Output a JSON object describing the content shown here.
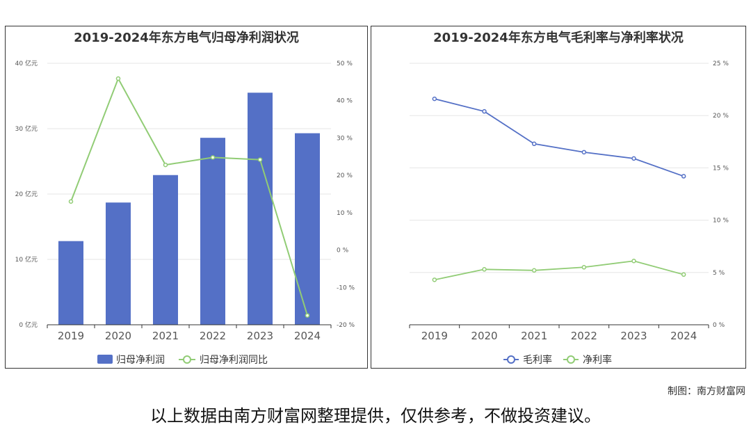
{
  "chart_data": [
    {
      "type": "bar",
      "title": "2019-2024年东方电气归母净利润状况",
      "categories": [
        "2019",
        "2020",
        "2021",
        "2022",
        "2023",
        "2024"
      ],
      "y_left": {
        "ylim": [
          0,
          40
        ],
        "ticks": [
          0,
          10,
          20,
          30,
          40
        ],
        "tick_labels": [
          "0 亿元",
          "10 亿元",
          "20 亿元",
          "30 亿元",
          "40 亿元"
        ]
      },
      "y_right": {
        "ylim": [
          -20,
          50
        ],
        "ticks": [
          -20,
          -10,
          0,
          10,
          20,
          30,
          40,
          50
        ],
        "tick_labels": [
          "-20 %",
          "-10 %",
          "0 %",
          "10 %",
          "20 %",
          "30 %",
          "40 %",
          "50 %"
        ]
      },
      "series": [
        {
          "name": "归母净利润",
          "type": "bar",
          "axis": "left",
          "color": "#5470c6",
          "values": [
            12.8,
            18.7,
            22.9,
            28.6,
            35.5,
            29.3
          ]
        },
        {
          "name": "归母净利润同比",
          "type": "line",
          "axis": "right",
          "color": "#91cc75",
          "values": [
            13.0,
            45.9,
            22.8,
            24.8,
            24.2,
            -17.5
          ]
        }
      ],
      "legend_position": "bottom-center",
      "grid": true
    },
    {
      "type": "line",
      "title": "2019-2024年东方电气毛利率与净利率状况",
      "categories": [
        "2019",
        "2020",
        "2021",
        "2022",
        "2023",
        "2024"
      ],
      "y_right": {
        "ylim": [
          0,
          25
        ],
        "ticks": [
          0,
          5,
          10,
          15,
          20,
          25
        ],
        "tick_labels": [
          "0 %",
          "5 %",
          "10 %",
          "15 %",
          "20 %",
          "25 %"
        ]
      },
      "series": [
        {
          "name": "毛利率",
          "type": "line",
          "color": "#5470c6",
          "values": [
            21.6,
            20.4,
            17.3,
            16.5,
            15.9,
            14.2
          ]
        },
        {
          "name": "净利率",
          "type": "line",
          "color": "#91cc75",
          "values": [
            4.3,
            5.3,
            5.2,
            5.5,
            6.1,
            4.8
          ]
        }
      ],
      "legend_position": "bottom-center",
      "grid": true
    }
  ],
  "footer": {
    "credit": "制图：南方财富网",
    "disclaimer": "以上数据由南方财富网整理提供，仅供参考，不做投资建议。"
  }
}
